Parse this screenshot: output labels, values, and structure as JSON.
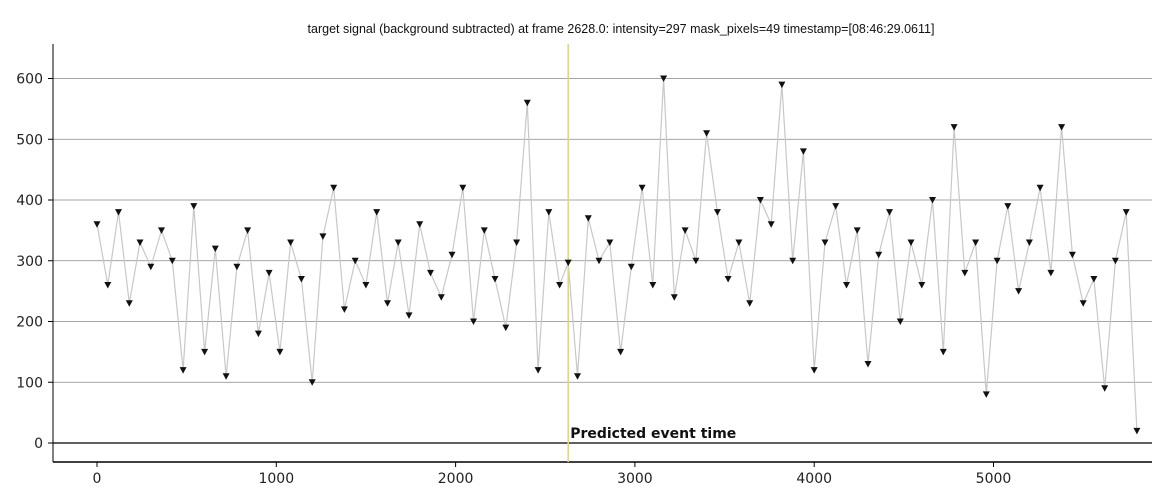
{
  "chart_data": {
    "type": "line",
    "title": "target signal (background subtracted) at frame 2628.0: intensity=297 mask_pixels=49 timestamp=[08:46:29.0611]",
    "xlabel": "",
    "ylabel": "",
    "xlim": [
      -200,
      5830
    ],
    "ylim": [
      -40,
      640
    ],
    "xticks": [
      0,
      1000,
      2000,
      3000,
      4000,
      5000
    ],
    "yticks": [
      0,
      100,
      200,
      300,
      400,
      500,
      600
    ],
    "grid": "horizontal",
    "marker": "triangle-down",
    "colors": {
      "markers": "#111111",
      "connector": "#c8c8c8",
      "event_line": "#d9d98a",
      "axis": "#000000",
      "grid": "#888888"
    },
    "event_line": {
      "x": 2628,
      "label": "Predicted event time"
    },
    "series": [
      {
        "x": [
          0,
          60,
          120,
          180,
          240,
          300,
          360,
          420,
          480,
          540,
          600,
          660,
          720,
          780,
          840,
          900,
          960,
          1020,
          1080,
          1140,
          1200,
          1260,
          1320,
          1380,
          1440,
          1500,
          1560,
          1620,
          1680,
          1740,
          1800,
          1860,
          1920,
          1980,
          2040,
          2100,
          2160,
          2220,
          2280,
          2340,
          2400,
          2460,
          2520,
          2580,
          2628,
          2680,
          2740,
          2800,
          2860,
          2920,
          2980,
          3040,
          3100,
          3160,
          3220,
          3280,
          3340,
          3400,
          3460,
          3520,
          3580,
          3640,
          3700,
          3760,
          3820,
          3880,
          3940,
          4000,
          4060,
          4120,
          4180,
          4240,
          4300,
          4360,
          4420,
          4480,
          4540,
          4600,
          4660,
          4720,
          4780,
          4840,
          4900,
          4960,
          5020,
          5080,
          5140,
          5200,
          5260,
          5320,
          5380,
          5440,
          5500,
          5560,
          5620,
          5680,
          5740,
          5800
        ],
        "values": [
          360,
          260,
          380,
          230,
          330,
          290,
          350,
          300,
          120,
          390,
          150,
          320,
          110,
          290,
          350,
          180,
          280,
          150,
          330,
          270,
          100,
          340,
          420,
          220,
          300,
          260,
          380,
          230,
          330,
          210,
          360,
          280,
          240,
          310,
          420,
          200,
          350,
          270,
          190,
          330,
          560,
          120,
          380,
          260,
          297,
          110,
          370,
          300,
          330,
          150,
          290,
          420,
          260,
          600,
          240,
          350,
          300,
          510,
          380,
          270,
          330,
          230,
          400,
          360,
          590,
          300,
          480,
          120,
          330,
          390,
          260,
          350,
          130,
          310,
          380,
          200,
          330,
          260,
          400,
          150,
          520,
          280,
          330,
          80,
          300,
          390,
          250,
          330,
          420,
          280,
          520,
          310,
          230,
          270,
          90,
          300,
          380,
          20
        ]
      }
    ]
  }
}
